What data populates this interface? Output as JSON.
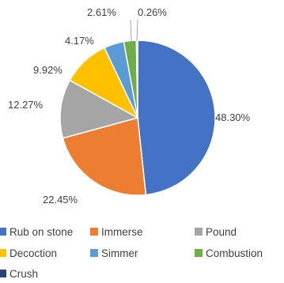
{
  "chart_data": {
    "type": "pie",
    "categories": [
      "Rub on stone",
      "Immerse",
      "Pound",
      "Decoction",
      "Simmer",
      "Combustion",
      "Crush"
    ],
    "values": [
      48.3,
      22.45,
      12.27,
      9.92,
      4.17,
      2.61,
      0.26
    ],
    "data_labels": [
      "48.30%",
      "22.45%",
      "12.27%",
      "9.92%",
      "4.17%",
      "2.61%",
      "0.26%"
    ],
    "legend": {
      "position": "bottom",
      "entries": [
        {
          "label": "Rub on stone",
          "color": "#4472C4"
        },
        {
          "label": "Immerse",
          "color": "#ED7D31"
        },
        {
          "label": "Pound",
          "color": "#A5A5A5"
        },
        {
          "label": "Decoction",
          "color": "#FFC000"
        },
        {
          "label": "Simmer",
          "color": "#5B9BD5"
        },
        {
          "label": "Combustion",
          "color": "#70AD47"
        },
        {
          "label": "Crush",
          "color": "#264478"
        }
      ]
    },
    "colors": [
      "#4472C4",
      "#ED7D31",
      "#A5A5A5",
      "#FFC000",
      "#5B9BD5",
      "#70AD47",
      "#264478"
    ]
  }
}
